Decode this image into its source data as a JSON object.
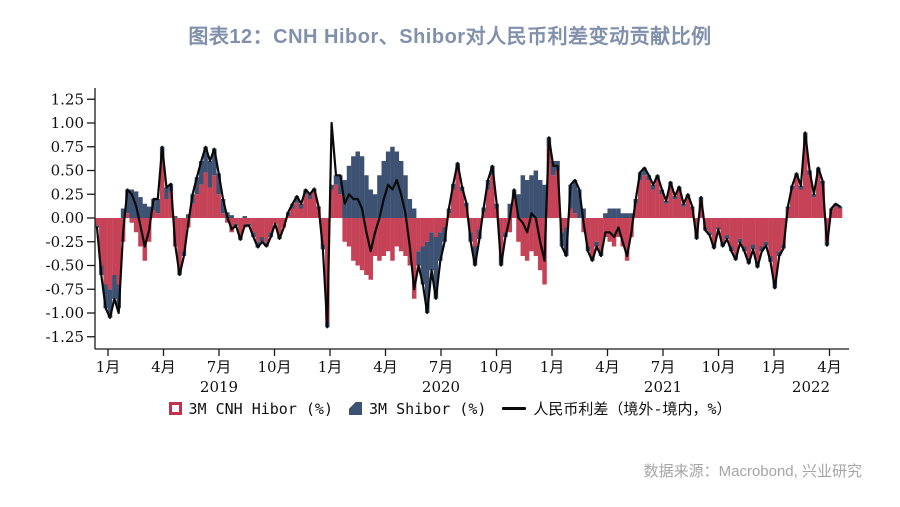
{
  "title": "图表12：CNH Hibor、Shibor对人民币利差变动贡献比例",
  "source": "数据来源：Macrobond, 兴业研究",
  "colors": {
    "title_text": "#8191ac",
    "cnh_bar": "#c64257",
    "shibor_bar": "#3d5272",
    "diff_line": "#0a0a0a",
    "axis": "#1a1a1a",
    "source_text": "#a5a5a5"
  },
  "legend": {
    "items": [
      {
        "label": "3M CNH Hibor (%)",
        "marker": "open-red-square"
      },
      {
        "label": "3M Shibor (%)",
        "marker": "blue-diagonal-square"
      },
      {
        "label": "人民币利差（境外-境内，%）",
        "marker": "black-line"
      }
    ]
  },
  "chart_data": {
    "type": "bar",
    "subtype": "stacked-bars-with-line-overlay",
    "title": "图表12：CNH Hibor、Shibor对人民币利差变动贡献比例",
    "xlabel": "",
    "ylabel": "",
    "ylim": [
      -1.375,
      1.375
    ],
    "yticks": [
      1.25,
      1.0,
      0.75,
      0.5,
      0.25,
      0.0,
      -0.25,
      -0.5,
      -0.75,
      -1.0,
      -1.25
    ],
    "grid": false,
    "legend_position": "bottom-center",
    "month_ticks": [
      {
        "label": "1月",
        "m": 0
      },
      {
        "label": "4月",
        "m": 3
      },
      {
        "label": "7月",
        "m": 6
      },
      {
        "label": "10月",
        "m": 9
      },
      {
        "label": "1月",
        "m": 12
      },
      {
        "label": "4月",
        "m": 15
      },
      {
        "label": "7月",
        "m": 18
      },
      {
        "label": "10月",
        "m": 21
      },
      {
        "label": "1月",
        "m": 24
      },
      {
        "label": "4月",
        "m": 27
      },
      {
        "label": "7月",
        "m": 30
      },
      {
        "label": "10月",
        "m": 33
      },
      {
        "label": "1月",
        "m": 36
      },
      {
        "label": "4月",
        "m": 39
      }
    ],
    "year_labels": [
      {
        "label": "2019",
        "m": 6
      },
      {
        "label": "2020",
        "m": 18
      },
      {
        "label": "2021",
        "m": 30
      },
      {
        "label": "2022",
        "m": 38
      }
    ],
    "series": [
      {
        "name": "3M CNH Hibor (%)",
        "type": "bar",
        "color": "#c64257",
        "values": [
          -0.08,
          -0.5,
          -0.7,
          -0.75,
          -0.6,
          -0.7,
          -0.25,
          0.05,
          -0.05,
          -0.15,
          -0.3,
          -0.45,
          -0.25,
          0.08,
          0.05,
          0.6,
          0.2,
          0.28,
          -0.3,
          -0.55,
          -0.35,
          -0.1,
          0.15,
          0.25,
          0.35,
          0.48,
          0.32,
          0.45,
          0.25,
          0.05,
          -0.05,
          -0.15,
          -0.06,
          -0.2,
          -0.1,
          -0.06,
          -0.15,
          -0.25,
          -0.2,
          -0.26,
          -0.15,
          -0.06,
          -0.2,
          -0.1,
          0.02,
          0.1,
          0.16,
          0.1,
          0.25,
          0.2,
          0.28,
          0.1,
          -0.28,
          -1.1,
          0.3,
          0.35,
          0.25,
          -0.25,
          -0.3,
          -0.45,
          -0.5,
          -0.55,
          -0.6,
          -0.65,
          -0.4,
          -0.45,
          -0.4,
          -0.35,
          -0.45,
          -0.3,
          -0.35,
          -0.4,
          -0.5,
          -0.85,
          -0.35,
          -0.3,
          -0.25,
          -0.15,
          -0.2,
          -0.15,
          -0.1,
          0.05,
          0.3,
          0.5,
          0.28,
          0.12,
          -0.15,
          -0.3,
          -0.12,
          0.06,
          0.3,
          0.45,
          0.1,
          -0.4,
          -0.15,
          -0.15,
          0.2,
          -0.25,
          -0.4,
          -0.45,
          -0.35,
          -0.4,
          -0.55,
          -0.7,
          0.75,
          0.45,
          0.5,
          -0.15,
          -0.1,
          0.1,
          0.05,
          0.0,
          -0.15,
          -0.3,
          -0.4,
          -0.25,
          -0.35,
          -0.2,
          -0.25,
          -0.3,
          -0.2,
          -0.3,
          -0.45,
          -0.2,
          0.15,
          0.4,
          0.45,
          0.4,
          0.3,
          0.4,
          0.25,
          0.15,
          0.35,
          0.2,
          0.3,
          0.12,
          0.22,
          0.1,
          -0.18,
          0.18,
          -0.1,
          -0.15,
          -0.28,
          -0.1,
          -0.25,
          -0.18,
          -0.3,
          -0.38,
          -0.22,
          -0.3,
          -0.42,
          -0.28,
          -0.45,
          -0.3,
          -0.25,
          -0.4,
          -0.65,
          -0.35,
          -0.28,
          0.1,
          0.3,
          0.42,
          0.3,
          0.82,
          0.45,
          0.22,
          0.48,
          0.35,
          -0.25,
          0.08,
          0.12,
          0.1
        ]
      },
      {
        "name": "3M Shibor (%)",
        "type": "bar",
        "color": "#3d5272",
        "values": [
          -0.02,
          -0.1,
          -0.25,
          -0.3,
          -0.25,
          -0.25,
          0.1,
          0.25,
          0.3,
          0.28,
          0.22,
          0.15,
          0.12,
          0.12,
          0.15,
          0.15,
          0.12,
          0.08,
          0.02,
          -0.05,
          -0.05,
          0.04,
          0.1,
          0.18,
          0.25,
          0.27,
          0.28,
          0.28,
          0.22,
          0.15,
          0.06,
          0.03,
          -0.02,
          -0.03,
          0.02,
          -0.02,
          -0.05,
          -0.06,
          -0.05,
          -0.04,
          -0.05,
          0.0,
          -0.02,
          0.0,
          0.04,
          0.05,
          0.07,
          0.05,
          0.05,
          0.05,
          0.03,
          0.02,
          -0.05,
          -0.05,
          0.05,
          0.1,
          0.2,
          0.4,
          0.55,
          0.65,
          0.7,
          0.65,
          0.45,
          0.3,
          0.25,
          0.45,
          0.6,
          0.7,
          0.75,
          0.7,
          0.6,
          0.45,
          0.2,
          0.1,
          -0.15,
          -0.4,
          -0.75,
          -0.4,
          -0.65,
          -0.3,
          -0.15,
          0.05,
          0.06,
          0.08,
          0.05,
          0.04,
          -0.1,
          -0.2,
          -0.1,
          0.05,
          0.1,
          0.1,
          0.05,
          -0.1,
          -0.05,
          0.15,
          0.1,
          0.25,
          0.45,
          0.4,
          0.45,
          0.5,
          0.4,
          0.35,
          0.1,
          0.15,
          0.1,
          -0.15,
          -0.3,
          0.25,
          0.35,
          0.3,
          0.1,
          -0.05,
          -0.05,
          -0.05,
          -0.05,
          0.05,
          0.1,
          0.1,
          0.1,
          0.05,
          0.05,
          0.05,
          0.05,
          0.08,
          0.08,
          0.05,
          0.05,
          0.05,
          0.05,
          0.03,
          0.03,
          0.03,
          0.03,
          0.03,
          0.03,
          0.02,
          -0.04,
          0.04,
          -0.03,
          -0.03,
          -0.04,
          -0.02,
          -0.05,
          -0.04,
          -0.05,
          -0.06,
          -0.04,
          -0.05,
          -0.06,
          -0.05,
          -0.07,
          -0.05,
          -0.04,
          -0.06,
          -0.09,
          -0.05,
          -0.04,
          0.02,
          0.04,
          0.05,
          0.04,
          0.08,
          0.05,
          0.03,
          0.05,
          0.04,
          -0.04,
          0.02,
          0.03,
          0.02
        ]
      },
      {
        "name": "人民币利差（境外-境内，%）",
        "type": "line",
        "color": "#0a0a0a",
        "values": [
          -0.1,
          -0.6,
          -0.95,
          -1.05,
          -0.85,
          -1.0,
          -0.15,
          0.3,
          0.25,
          0.13,
          -0.08,
          -0.3,
          -0.13,
          0.2,
          0.2,
          0.75,
          0.32,
          0.36,
          -0.28,
          -0.6,
          -0.4,
          -0.06,
          0.25,
          0.43,
          0.6,
          0.75,
          0.6,
          0.73,
          0.47,
          0.2,
          0.01,
          -0.12,
          -0.08,
          -0.23,
          -0.08,
          -0.08,
          -0.2,
          -0.31,
          -0.25,
          -0.3,
          -0.2,
          -0.06,
          -0.22,
          -0.1,
          0.06,
          0.15,
          0.23,
          0.15,
          0.3,
          0.25,
          0.31,
          0.12,
          -0.33,
          -1.15,
          1.0,
          0.45,
          0.45,
          0.15,
          0.25,
          0.2,
          0.2,
          0.1,
          -0.15,
          -0.35,
          -0.15,
          0.0,
          0.2,
          0.35,
          0.3,
          0.4,
          0.25,
          0.05,
          -0.3,
          -0.75,
          -0.5,
          -0.7,
          -1.0,
          -0.55,
          -0.85,
          -0.45,
          -0.25,
          0.1,
          0.36,
          0.58,
          0.33,
          0.16,
          -0.25,
          -0.5,
          -0.22,
          0.11,
          0.4,
          0.55,
          0.15,
          -0.5,
          -0.2,
          0.0,
          0.3,
          0.0,
          -0.05,
          -0.15,
          0.05,
          0.0,
          -0.25,
          -0.45,
          0.85,
          0.55,
          0.55,
          -0.3,
          -0.4,
          0.35,
          0.4,
          0.3,
          -0.05,
          -0.35,
          -0.45,
          -0.3,
          -0.4,
          -0.15,
          -0.15,
          -0.2,
          -0.1,
          -0.25,
          -0.4,
          -0.15,
          0.2,
          0.48,
          0.53,
          0.45,
          0.35,
          0.45,
          0.3,
          0.18,
          0.38,
          0.23,
          0.33,
          0.15,
          0.25,
          0.12,
          -0.22,
          0.22,
          -0.13,
          -0.18,
          -0.32,
          -0.12,
          -0.3,
          -0.22,
          -0.35,
          -0.44,
          -0.26,
          -0.35,
          -0.48,
          -0.33,
          -0.52,
          -0.35,
          -0.29,
          -0.46,
          -0.74,
          -0.4,
          -0.32,
          0.12,
          0.34,
          0.47,
          0.34,
          0.9,
          0.5,
          0.25,
          0.53,
          0.39,
          -0.29,
          0.1,
          0.15,
          0.12
        ]
      }
    ]
  }
}
